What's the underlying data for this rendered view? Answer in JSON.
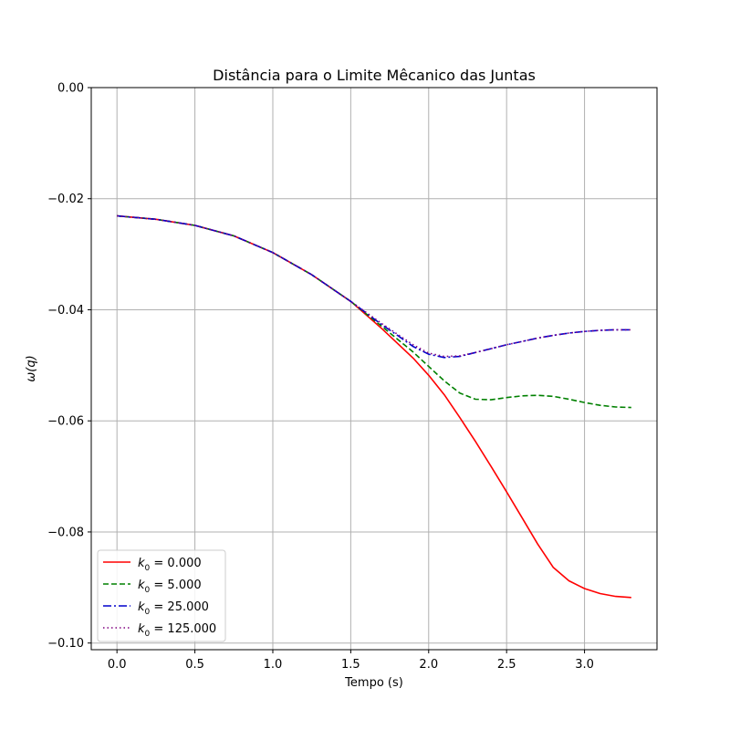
{
  "chart_data": {
    "type": "line",
    "title": "Distância para o Limite Mêcanico das Juntas",
    "xlabel": "Tempo (s)",
    "ylabel": "ω(q)",
    "xlim": [
      -0.165,
      3.465
    ],
    "ylim": [
      -0.1012,
      0.0
    ],
    "xticks": [
      0.0,
      0.5,
      1.0,
      1.5,
      2.0,
      2.5,
      3.0
    ],
    "xtick_labels": [
      "0.0",
      "0.5",
      "1.0",
      "1.5",
      "2.0",
      "2.5",
      "3.0"
    ],
    "yticks": [
      0.0,
      -0.02,
      -0.04,
      -0.06,
      -0.08,
      -0.1
    ],
    "ytick_labels": [
      "0.00",
      "−0.02",
      "−0.04",
      "−0.06",
      "−0.08",
      "−0.10"
    ],
    "grid": true,
    "legend_position": "lower-left",
    "series": [
      {
        "name": "k0 = 0.000",
        "legend_main": "k",
        "legend_sub": "0",
        "legend_rest": " = 0.000",
        "color": "#ff0000",
        "dash": "solid",
        "x": [
          0.0,
          0.25,
          0.5,
          0.75,
          1.0,
          1.25,
          1.5,
          1.7,
          1.9,
          2.0,
          2.1,
          2.2,
          2.3,
          2.4,
          2.5,
          2.6,
          2.7,
          2.8,
          2.9,
          3.0,
          3.1,
          3.2,
          3.3
        ],
        "y": [
          -0.0231,
          -0.0237,
          -0.0248,
          -0.0267,
          -0.0297,
          -0.0337,
          -0.0385,
          -0.0434,
          -0.0487,
          -0.0518,
          -0.0553,
          -0.0594,
          -0.0637,
          -0.0682,
          -0.0728,
          -0.0775,
          -0.0822,
          -0.0864,
          -0.0888,
          -0.0902,
          -0.0911,
          -0.0916,
          -0.0918
        ]
      },
      {
        "name": "k0 = 5.000",
        "legend_main": "k",
        "legend_sub": "0",
        "legend_rest": " = 5.000",
        "color": "#008000",
        "dash": "dashed",
        "x": [
          0.0,
          0.25,
          0.5,
          0.75,
          1.0,
          1.25,
          1.5,
          1.7,
          1.8,
          1.9,
          2.0,
          2.1,
          2.2,
          2.3,
          2.4,
          2.5,
          2.6,
          2.7,
          2.8,
          2.9,
          3.0,
          3.1,
          3.2,
          3.3
        ],
        "y": [
          -0.0231,
          -0.0237,
          -0.0248,
          -0.0267,
          -0.0297,
          -0.0337,
          -0.0385,
          -0.043,
          -0.0453,
          -0.0476,
          -0.0502,
          -0.0528,
          -0.055,
          -0.0561,
          -0.0562,
          -0.0558,
          -0.0555,
          -0.0554,
          -0.0556,
          -0.0561,
          -0.0567,
          -0.0572,
          -0.0575,
          -0.0576
        ]
      },
      {
        "name": "k0 = 25.000",
        "legend_main": "k",
        "legend_sub": "0",
        "legend_rest": " = 25.000",
        "color": "#0000cc",
        "dash": "dashdot",
        "x": [
          0.0,
          0.25,
          0.5,
          0.75,
          1.0,
          1.25,
          1.5,
          1.7,
          1.8,
          1.9,
          2.0,
          2.1,
          2.2,
          2.3,
          2.4,
          2.5,
          2.6,
          2.7,
          2.8,
          2.9,
          3.0,
          3.1,
          3.2,
          3.3
        ],
        "y": [
          -0.0231,
          -0.0237,
          -0.0248,
          -0.0267,
          -0.0297,
          -0.0337,
          -0.0385,
          -0.0427,
          -0.0446,
          -0.0466,
          -0.048,
          -0.0486,
          -0.0484,
          -0.0477,
          -0.047,
          -0.0463,
          -0.0457,
          -0.0451,
          -0.0446,
          -0.0442,
          -0.0439,
          -0.0437,
          -0.0436,
          -0.0436
        ]
      },
      {
        "name": "k0 = 125.000",
        "legend_main": "k",
        "legend_sub": "0",
        "legend_rest": " = 125.000",
        "color": "#800080",
        "dash": "dotted",
        "x": [
          0.0,
          0.25,
          0.5,
          0.75,
          1.0,
          1.25,
          1.5,
          1.7,
          1.8,
          1.9,
          2.0,
          2.1,
          2.2,
          2.3,
          2.4,
          2.5,
          2.6,
          2.7,
          2.8,
          2.9,
          3.0,
          3.1,
          3.2,
          3.3
        ],
        "y": [
          -0.0231,
          -0.0237,
          -0.0248,
          -0.0267,
          -0.0297,
          -0.0337,
          -0.0385,
          -0.0425,
          -0.0444,
          -0.0463,
          -0.0478,
          -0.0484,
          -0.0483,
          -0.0477,
          -0.047,
          -0.0463,
          -0.0457,
          -0.0451,
          -0.0446,
          -0.0442,
          -0.0439,
          -0.0437,
          -0.0436,
          -0.0436
        ]
      }
    ]
  }
}
